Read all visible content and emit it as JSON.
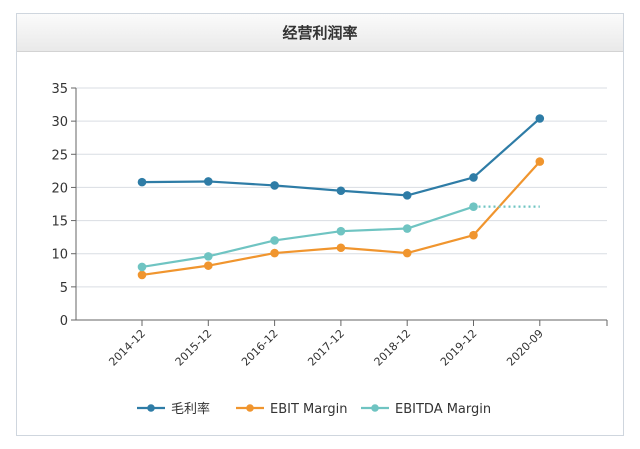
{
  "chart_data": {
    "type": "line",
    "title": "经营利润率",
    "categories": [
      "2014-12",
      "2015-12",
      "2016-12",
      "2017-12",
      "2018-12",
      "2019-12",
      "2020-09"
    ],
    "ylim": [
      0,
      35
    ],
    "yticks": [
      0,
      5,
      10,
      15,
      20,
      25,
      30,
      35
    ],
    "grid": true,
    "legend_position": "bottom",
    "series": [
      {
        "name": "毛利率",
        "color": "#2e7ca6",
        "values": [
          20.8,
          20.9,
          20.3,
          19.5,
          18.8,
          21.5,
          30.4
        ]
      },
      {
        "name": "EBIT Margin",
        "color": "#f0952e",
        "values": [
          6.8,
          8.2,
          10.1,
          10.9,
          10.1,
          12.8,
          23.9
        ]
      },
      {
        "name": "EBITDA Margin",
        "color": "#6fc4c2",
        "values": [
          8.0,
          9.6,
          12.0,
          13.4,
          13.8,
          17.1,
          17.1
        ],
        "dashed_last_segment": true
      }
    ]
  }
}
